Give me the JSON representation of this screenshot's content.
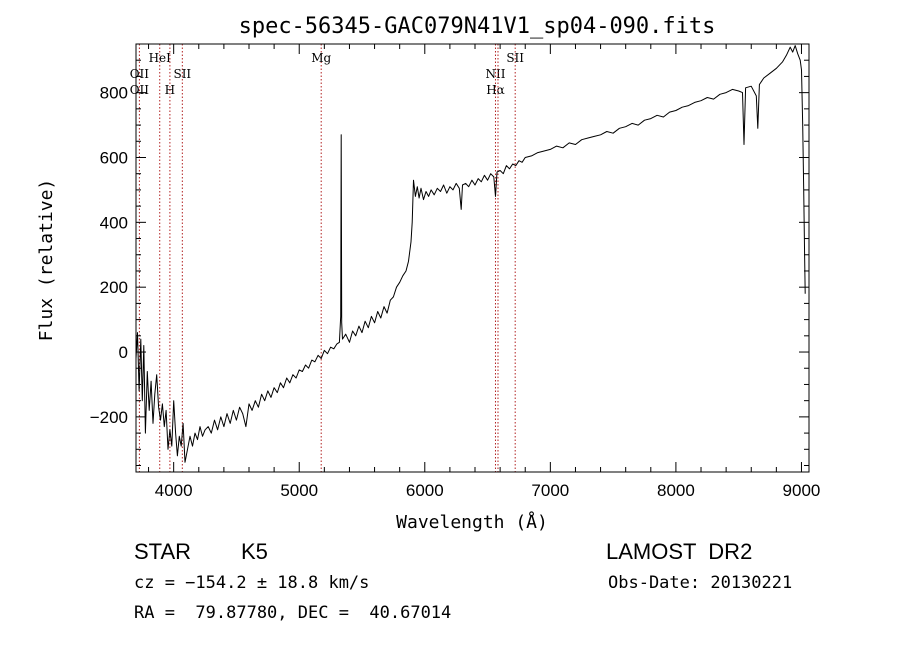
{
  "chart_data": {
    "type": "line",
    "title": "spec-56345-GAC079N41V1_sp04-090.fits",
    "xlabel": "Wavelength (Å)",
    "ylabel": "Flux (relative)",
    "xlim": [
      3700,
      9060
    ],
    "ylim": [
      -370,
      950
    ],
    "x_ticks": [
      4000,
      5000,
      6000,
      7000,
      8000,
      9000
    ],
    "y_ticks": [
      -200,
      0,
      200,
      400,
      600,
      800
    ],
    "grid": false,
    "line_color": "#000000",
    "marker_color": "#b22222",
    "series": [
      {
        "points": [
          [
            3700,
            -20
          ],
          [
            3712,
            60
          ],
          [
            3725,
            -120
          ],
          [
            3738,
            40
          ],
          [
            3750,
            -150
          ],
          [
            3762,
            20
          ],
          [
            3775,
            -250
          ],
          [
            3790,
            -60
          ],
          [
            3805,
            -180
          ],
          [
            3820,
            -90
          ],
          [
            3835,
            -220
          ],
          [
            3850,
            -130
          ],
          [
            3865,
            -70
          ],
          [
            3880,
            -170
          ],
          [
            3895,
            -210
          ],
          [
            3910,
            -160
          ],
          [
            3925,
            -230
          ],
          [
            3940,
            -180
          ],
          [
            3955,
            -300
          ],
          [
            3970,
            -240
          ],
          [
            3985,
            -290
          ],
          [
            4000,
            -150
          ],
          [
            4015,
            -250
          ],
          [
            4030,
            -320
          ],
          [
            4045,
            -260
          ],
          [
            4060,
            -290
          ],
          [
            4075,
            -220
          ],
          [
            4090,
            -340
          ],
          [
            4110,
            -300
          ],
          [
            4130,
            -260
          ],
          [
            4150,
            -290
          ],
          [
            4170,
            -250
          ],
          [
            4190,
            -270
          ],
          [
            4210,
            -230
          ],
          [
            4230,
            -260
          ],
          [
            4250,
            -240
          ],
          [
            4275,
            -230
          ],
          [
            4300,
            -250
          ],
          [
            4325,
            -210
          ],
          [
            4350,
            -240
          ],
          [
            4375,
            -200
          ],
          [
            4400,
            -230
          ],
          [
            4425,
            -190
          ],
          [
            4450,
            -220
          ],
          [
            4475,
            -180
          ],
          [
            4500,
            -210
          ],
          [
            4525,
            -170
          ],
          [
            4550,
            -190
          ],
          [
            4575,
            -230
          ],
          [
            4600,
            -160
          ],
          [
            4625,
            -180
          ],
          [
            4650,
            -150
          ],
          [
            4675,
            -170
          ],
          [
            4700,
            -130
          ],
          [
            4725,
            -150
          ],
          [
            4750,
            -120
          ],
          [
            4775,
            -140
          ],
          [
            4800,
            -110
          ],
          [
            4825,
            -125
          ],
          [
            4850,
            -95
          ],
          [
            4875,
            -110
          ],
          [
            4900,
            -80
          ],
          [
            4925,
            -95
          ],
          [
            4950,
            -70
          ],
          [
            4975,
            -80
          ],
          [
            5000,
            -55
          ],
          [
            5025,
            -60
          ],
          [
            5050,
            -40
          ],
          [
            5075,
            -50
          ],
          [
            5100,
            -25
          ],
          [
            5125,
            -30
          ],
          [
            5150,
            -10
          ],
          [
            5175,
            -20
          ],
          [
            5200,
            5
          ],
          [
            5225,
            -5
          ],
          [
            5250,
            15
          ],
          [
            5275,
            10
          ],
          [
            5300,
            25
          ],
          [
            5320,
            30
          ],
          [
            5330,
            110
          ],
          [
            5334,
            670
          ],
          [
            5338,
            90
          ],
          [
            5345,
            40
          ],
          [
            5370,
            55
          ],
          [
            5400,
            30
          ],
          [
            5425,
            65
          ],
          [
            5450,
            50
          ],
          [
            5475,
            80
          ],
          [
            5500,
            60
          ],
          [
            5525,
            95
          ],
          [
            5550,
            75
          ],
          [
            5575,
            110
          ],
          [
            5600,
            90
          ],
          [
            5625,
            125
          ],
          [
            5650,
            105
          ],
          [
            5675,
            140
          ],
          [
            5700,
            120
          ],
          [
            5725,
            160
          ],
          [
            5750,
            170
          ],
          [
            5775,
            200
          ],
          [
            5800,
            215
          ],
          [
            5825,
            235
          ],
          [
            5850,
            250
          ],
          [
            5870,
            280
          ],
          [
            5890,
            340
          ],
          [
            5900,
            400
          ],
          [
            5910,
            530
          ],
          [
            5925,
            480
          ],
          [
            5940,
            510
          ],
          [
            5955,
            475
          ],
          [
            5970,
            505
          ],
          [
            5990,
            470
          ],
          [
            6010,
            495
          ],
          [
            6030,
            480
          ],
          [
            6050,
            500
          ],
          [
            6075,
            485
          ],
          [
            6100,
            505
          ],
          [
            6125,
            495
          ],
          [
            6150,
            515
          ],
          [
            6175,
            490
          ],
          [
            6200,
            510
          ],
          [
            6225,
            500
          ],
          [
            6250,
            520
          ],
          [
            6275,
            505
          ],
          [
            6290,
            440
          ],
          [
            6300,
            515
          ],
          [
            6325,
            520
          ],
          [
            6350,
            510
          ],
          [
            6375,
            530
          ],
          [
            6400,
            515
          ],
          [
            6425,
            535
          ],
          [
            6450,
            525
          ],
          [
            6475,
            545
          ],
          [
            6500,
            530
          ],
          [
            6525,
            550
          ],
          [
            6550,
            540
          ],
          [
            6563,
            480
          ],
          [
            6575,
            555
          ],
          [
            6600,
            560
          ],
          [
            6625,
            550
          ],
          [
            6650,
            575
          ],
          [
            6675,
            565
          ],
          [
            6700,
            580
          ],
          [
            6725,
            575
          ],
          [
            6750,
            590
          ],
          [
            6775,
            585
          ],
          [
            6800,
            600
          ],
          [
            6850,
            605
          ],
          [
            6900,
            615
          ],
          [
            6950,
            620
          ],
          [
            7000,
            625
          ],
          [
            7050,
            635
          ],
          [
            7100,
            630
          ],
          [
            7150,
            645
          ],
          [
            7200,
            640
          ],
          [
            7250,
            655
          ],
          [
            7300,
            660
          ],
          [
            7350,
            665
          ],
          [
            7400,
            670
          ],
          [
            7450,
            680
          ],
          [
            7500,
            675
          ],
          [
            7550,
            690
          ],
          [
            7600,
            695
          ],
          [
            7650,
            705
          ],
          [
            7700,
            700
          ],
          [
            7750,
            715
          ],
          [
            7800,
            720
          ],
          [
            7850,
            730
          ],
          [
            7900,
            725
          ],
          [
            7950,
            740
          ],
          [
            8000,
            745
          ],
          [
            8050,
            755
          ],
          [
            8100,
            760
          ],
          [
            8150,
            770
          ],
          [
            8200,
            775
          ],
          [
            8250,
            785
          ],
          [
            8300,
            780
          ],
          [
            8350,
            795
          ],
          [
            8400,
            800
          ],
          [
            8450,
            810
          ],
          [
            8500,
            805
          ],
          [
            8530,
            800
          ],
          [
            8542,
            640
          ],
          [
            8555,
            815
          ],
          [
            8600,
            820
          ],
          [
            8640,
            790
          ],
          [
            8652,
            690
          ],
          [
            8665,
            825
          ],
          [
            8700,
            845
          ],
          [
            8750,
            860
          ],
          [
            8800,
            875
          ],
          [
            8850,
            895
          ],
          [
            8880,
            915
          ],
          [
            8910,
            940
          ],
          [
            8930,
            925
          ],
          [
            8950,
            945
          ],
          [
            8970,
            920
          ],
          [
            8990,
            900
          ],
          [
            9000,
            870
          ],
          [
            9010,
            700
          ],
          [
            9018,
            500
          ],
          [
            9025,
            300
          ],
          [
            9030,
            180
          ]
        ]
      }
    ],
    "line_markers": [
      {
        "wavelength": 3727,
        "labels": [
          "OII",
          "OII"
        ],
        "row": 2
      },
      {
        "wavelength": 3889,
        "labels": [
          "HeI"
        ],
        "row": 1
      },
      {
        "wavelength": 3970,
        "labels": [
          "H"
        ],
        "row": 3
      },
      {
        "wavelength": 4069,
        "labels": [
          "SII"
        ],
        "row": 2
      },
      {
        "wavelength": 5175,
        "labels": [
          "Mg"
        ],
        "row": 1
      },
      {
        "wavelength": 6563,
        "labels": [
          "NII",
          "Hα"
        ],
        "row": 2
      },
      {
        "wavelength": 6583,
        "labels": [],
        "row": 2
      },
      {
        "wavelength": 6720,
        "labels": [
          "SII"
        ],
        "row": 1
      }
    ]
  },
  "footer": {
    "object_class": "STAR",
    "subclass": "K5",
    "survey": "LAMOST  DR2",
    "redshift_line": "cz = −154.2 ± 18.8 km/s",
    "obs_date_line": "Obs-Date: 20130221",
    "coords_line": "RA =  79.87780, DEC =  40.67014"
  }
}
